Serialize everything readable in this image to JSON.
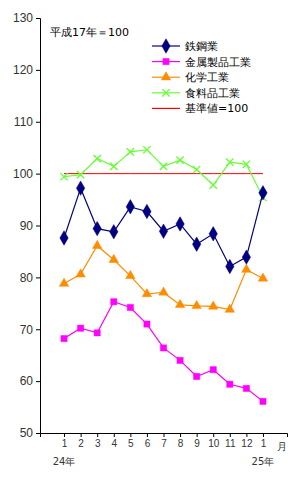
{
  "chart_data": {
    "type": "line",
    "annotations": [
      "平成17年＝100",
      "24年",
      "25年"
    ],
    "x_label": "月",
    "categories": [
      "1",
      "2",
      "3",
      "4",
      "5",
      "6",
      "7",
      "8",
      "9",
      "10",
      "11",
      "12",
      "1"
    ],
    "ylim": [
      50,
      130
    ],
    "yticks": [
      50,
      60,
      70,
      80,
      90,
      100,
      110,
      120,
      130
    ],
    "grid": false,
    "legend": "top-right",
    "series": [
      {
        "name": "鉄鋼業",
        "color": "#000080",
        "marker": "diamond",
        "line_style": "solid",
        "values": [
          87.6,
          97.2,
          89.4,
          88.8,
          93.6,
          92.7,
          88.9,
          90.3,
          86.4,
          88.4,
          82.1,
          83.9,
          96.3
        ]
      },
      {
        "name": "金属製品工業",
        "color": "#ff00ff",
        "marker": "square",
        "line_style": "solid",
        "values": [
          68.2,
          70.2,
          69.3,
          75.3,
          74.2,
          71.0,
          66.4,
          64.0,
          60.9,
          62.2,
          59.4,
          58.6,
          56.1
        ]
      },
      {
        "name": "化学工業",
        "color": "#ff8c00",
        "marker": "triangle",
        "line_style": "solid",
        "values": [
          78.8,
          80.6,
          86.1,
          83.4,
          80.3,
          76.8,
          77.1,
          74.7,
          74.5,
          74.4,
          73.8,
          81.5,
          79.8
        ]
      },
      {
        "name": "食料品工業",
        "color": "#66ff33",
        "marker": "x",
        "line_style": "solid",
        "values": [
          99.4,
          99.8,
          102.9,
          101.4,
          104.2,
          104.6,
          101.4,
          102.6,
          100.8,
          97.8,
          102.2,
          101.8,
          95.4
        ]
      },
      {
        "name": "基準値=100",
        "color": "#ff0000",
        "marker": "none",
        "line_style": "solid",
        "values": [
          100,
          100,
          100,
          100,
          100,
          100,
          100,
          100,
          100,
          100,
          100,
          100,
          100
        ]
      }
    ]
  }
}
